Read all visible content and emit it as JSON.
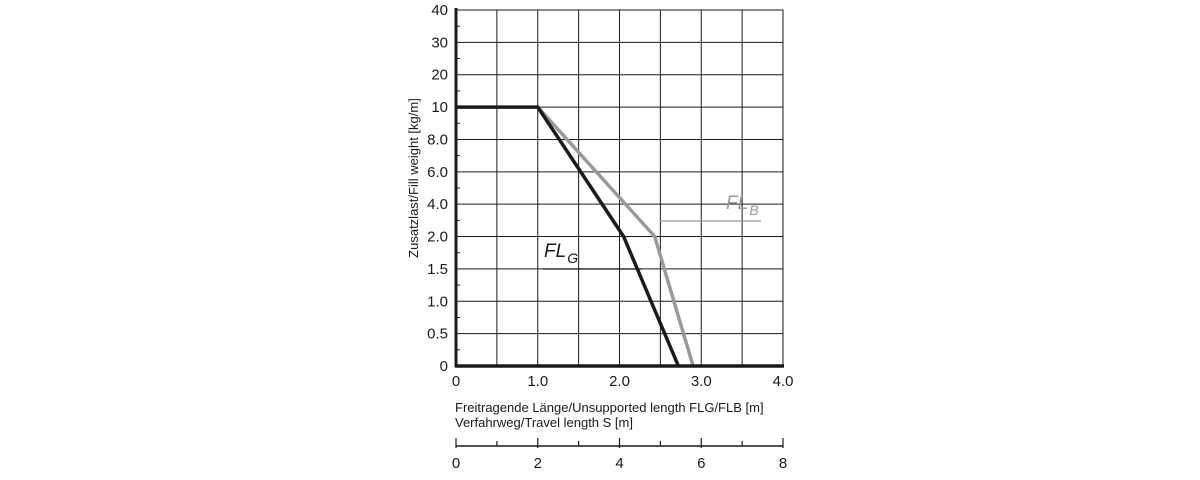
{
  "chart_data": {
    "type": "line",
    "ylabel": "Zusatzlast/Fill weight [kg/m]",
    "xlabel_lines": [
      "Freitragende Länge/Unsupported length FLG/FLB [m]",
      "Verfahrweg/Travel length S [m]"
    ],
    "x_ticks": [
      "0",
      "1.0",
      "2.0",
      "3.0",
      "4.0"
    ],
    "xlim": [
      0,
      4
    ],
    "x_minor_step": 0.5,
    "y_ticks": [
      "0",
      "0.5",
      "1.0",
      "1.5",
      "2.0",
      "4.0",
      "6.0",
      "8.0",
      "10",
      "20",
      "30",
      "40"
    ],
    "y_tick_values": [
      0,
      0.5,
      1.0,
      1.5,
      2.0,
      4.0,
      6.0,
      8.0,
      10,
      20,
      30,
      40
    ],
    "y_scale": "piecewise-nonlinear",
    "grid": true,
    "secondary_axis": {
      "ticks": [
        "0",
        "2",
        "4",
        "6",
        "8"
      ],
      "tick_values": [
        0,
        2,
        4,
        6,
        8
      ],
      "range": [
        0,
        8
      ]
    },
    "series": [
      {
        "name": "FL",
        "subscript": "G",
        "color": "#1a1a1a",
        "x": [
          0,
          1.0,
          2.05,
          2.72
        ],
        "y": [
          10,
          10,
          2.0,
          0
        ]
      },
      {
        "name": "FL",
        "subscript": "B",
        "color": "#999999",
        "x": [
          1.0,
          2.43,
          2.9
        ],
        "y": [
          10,
          2.0,
          0
        ]
      }
    ]
  }
}
